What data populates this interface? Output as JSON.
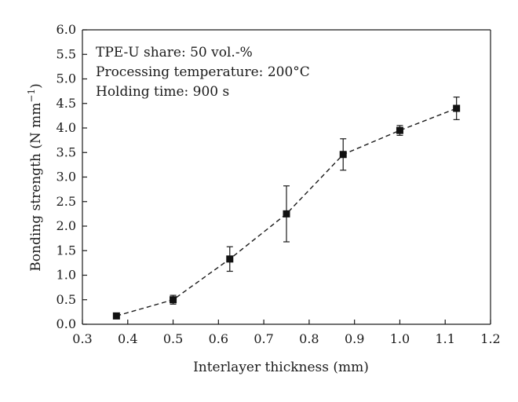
{
  "chart_data": {
    "type": "line",
    "xlabel": "Interlayer thickness (mm)",
    "ylabel": "Bonding strength (N mm",
    "ylabel_superscript": "−1",
    "ylabel_close": ")",
    "xlim": [
      0.3,
      1.2
    ],
    "ylim": [
      0.0,
      6.0
    ],
    "x_ticks": [
      "0.3",
      "0.4",
      "0.5",
      "0.6",
      "0.7",
      "0.8",
      "0.9",
      "1.0",
      "1.1",
      "1.2"
    ],
    "y_ticks": [
      "0.0",
      "0.5",
      "1.0",
      "1.5",
      "2.0",
      "2.5",
      "3.0",
      "3.5",
      "4.0",
      "4.5",
      "5.0",
      "5.5",
      "6.0"
    ],
    "annotations": [
      "TPE-U share: 50 vol.-%",
      "Processing temperature: 200°C",
      "Holding time: 900 s"
    ],
    "grid": false,
    "series": [
      {
        "x": [
          0.375,
          0.5,
          0.625,
          0.75,
          0.875,
          1.0,
          1.125
        ],
        "y": [
          0.17,
          0.5,
          1.33,
          2.25,
          3.46,
          3.95,
          4.4
        ],
        "yerr": [
          0.03,
          0.09,
          0.25,
          0.57,
          0.32,
          0.1,
          0.23
        ]
      }
    ]
  }
}
